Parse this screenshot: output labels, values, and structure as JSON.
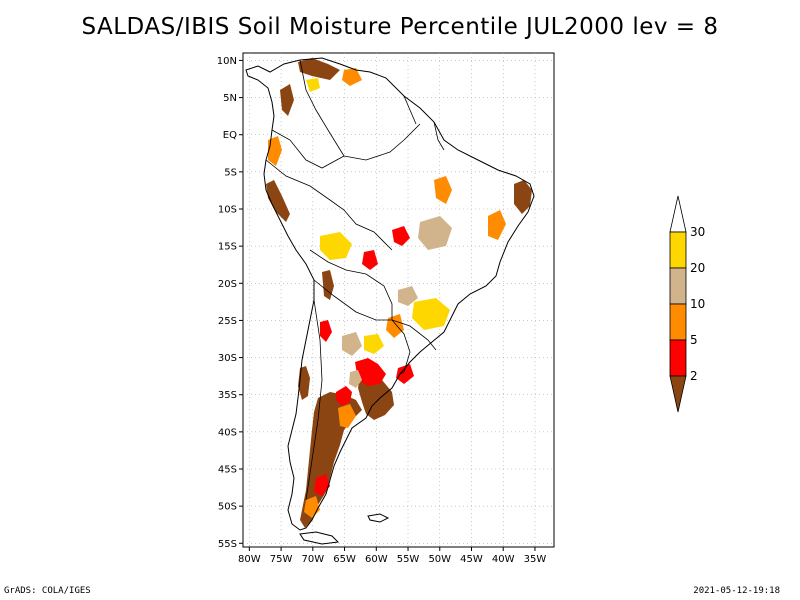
{
  "title": "SALDAS/IBIS Soil Moisture Percentile JUL2000 lev = 8",
  "footer": {
    "left": "GrADS: COLA/IGES",
    "right": "2021-05-12-19:18"
  },
  "axes": {
    "lat_ticks": [
      "10N",
      "5N",
      "EQ",
      "5S",
      "10S",
      "15S",
      "20S",
      "25S",
      "30S",
      "35S",
      "40S",
      "45S",
      "50S",
      "55S"
    ],
    "lon_ticks": [
      "80W",
      "75W",
      "70W",
      "65W",
      "60W",
      "55W",
      "50W",
      "45W",
      "40W",
      "35W"
    ],
    "lat_range": [
      -55.5,
      11
    ],
    "lon_range": [
      -81,
      -32
    ]
  },
  "colorbar": {
    "labels": [
      "30",
      "20",
      "10",
      "5",
      "2"
    ],
    "colors": [
      "#ffffff",
      "#ffd700",
      "#d2b48c",
      "#ff8c00",
      "#ff0000",
      "#8b4513"
    ],
    "bins": [
      {
        "label": ">30",
        "color": "#ffffff"
      },
      {
        "label": "20-30",
        "color": "#ffd700"
      },
      {
        "label": "10-20",
        "color": "#d2b48c"
      },
      {
        "label": "5-10",
        "color": "#ff8c00"
      },
      {
        "label": "2-5",
        "color": "#ff0000"
      },
      {
        "label": "<2",
        "color": "#8b4513"
      }
    ]
  },
  "colors": {
    "brown": "#8b4513",
    "red": "#ff0000",
    "orange": "#ff8c00",
    "tan": "#d2b48c",
    "gold": "#ffd700",
    "grid": "#aaaaaa",
    "coast": "#000000"
  }
}
